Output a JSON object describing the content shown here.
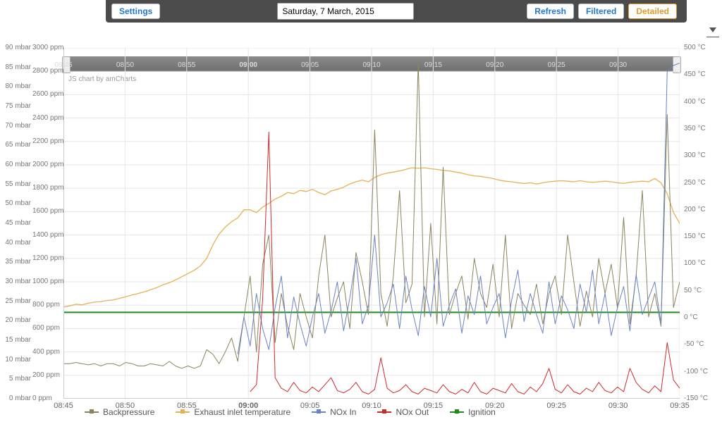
{
  "toolbar": {
    "settings": "Settings",
    "refresh": "Refresh",
    "filtered": "Filtered",
    "detailed": "Detailed",
    "date_value": "Saturday, 7 March, 2015"
  },
  "credit": "JS chart by amCharts",
  "axes": {
    "x": {
      "ticks": [
        "08:45",
        "08:50",
        "08:55",
        "09:00",
        "09:05",
        "09:10",
        "09:15",
        "09:20",
        "09:25",
        "09:30",
        "09:35"
      ],
      "bold_tick": "09:00",
      "min": 0,
      "max": 50,
      "label_color": "#666",
      "fontsize": 11
    },
    "mbar": {
      "unit": "mbar",
      "min": 0,
      "max": 90,
      "step": 5,
      "color": "#777",
      "fontsize": 10
    },
    "ppm": {
      "unit": "ppm",
      "min": 0,
      "max": 3000,
      "step": 200,
      "color": "#777",
      "fontsize": 10
    },
    "degc": {
      "unit": "°C",
      "min": -150,
      "max": 500,
      "step": 50,
      "color": "#777",
      "fontsize": 10
    }
  },
  "grid_color": "#e5e5e5",
  "background_color": "#ffffff",
  "scrollbar": {
    "bg": "#7a7a7a",
    "handle": "#eeeeee"
  },
  "series": {
    "backpressure": {
      "label": "Backpressure",
      "color": "#8a845d",
      "width": 1,
      "axis": "ppm",
      "y": [
        300,
        300,
        310,
        300,
        290,
        300,
        280,
        300,
        300,
        280,
        310,
        300,
        280,
        280,
        300,
        290,
        280,
        320,
        280,
        260,
        280,
        260,
        280,
        420,
        380,
        300,
        400,
        520,
        320,
        700,
        1050,
        400,
        1150,
        1400,
        480,
        900,
        620,
        420,
        900,
        700,
        520,
        1050,
        1400,
        700,
        860,
        1000,
        600,
        1250,
        1000,
        720,
        2300,
        900,
        620,
        1050,
        1780,
        820,
        980,
        2880,
        700,
        1500,
        640,
        1980,
        720,
        900,
        1050,
        680,
        1200,
        900,
        780,
        1150,
        700,
        1400,
        600,
        900,
        800,
        720,
        980,
        640,
        900,
        1050,
        720,
        1400,
        1000,
        620,
        920,
        700,
        1200,
        900,
        1150,
        780,
        1550,
        640,
        1050,
        1780,
        700,
        900,
        620,
        2430,
        780,
        1000
      ]
    },
    "exhaust": {
      "label": "Exhaust inlet temperature",
      "color": "#e7b055",
      "width": 1.3,
      "axis": "degc",
      "y": [
        20,
        22,
        25,
        24,
        27,
        29,
        30,
        32,
        33,
        36,
        39,
        42,
        45,
        48,
        52,
        56,
        61,
        65,
        70,
        76,
        82,
        88,
        96,
        110,
        135,
        155,
        168,
        178,
        185,
        200,
        200,
        195,
        205,
        212,
        220,
        225,
        232,
        230,
        236,
        234,
        238,
        232,
        228,
        235,
        238,
        242,
        248,
        252,
        255,
        252,
        260,
        265,
        268,
        270,
        272,
        275,
        278,
        277,
        278,
        276,
        275,
        273,
        272,
        270,
        268,
        265,
        263,
        262,
        260,
        258,
        255,
        253,
        252,
        250,
        249,
        250,
        248,
        250,
        252,
        253,
        254,
        253,
        252,
        254,
        252,
        251,
        252,
        253,
        252,
        250,
        249,
        251,
        252,
        253,
        252,
        258,
        250,
        230,
        195,
        175
      ]
    },
    "nox_in": {
      "label": "NOx In",
      "color": "#6a83c6",
      "width": 1,
      "axis": "ppm",
      "start": 28,
      "y": [
        380,
        700,
        450,
        900,
        600,
        420,
        780,
        1050,
        520,
        870,
        640,
        450,
        700,
        900,
        560,
        750,
        1000,
        580,
        860,
        1200,
        640,
        800,
        1400,
        700,
        820,
        980,
        600,
        1050,
        760,
        540,
        960,
        700,
        1200,
        620,
        800,
        940,
        560,
        880,
        720,
        1050,
        640,
        780,
        900,
        520,
        840,
        1100,
        660,
        900,
        720,
        560,
        1000,
        640,
        880,
        760,
        600,
        980,
        740,
        1100,
        640,
        900,
        540,
        780,
        960,
        580,
        1060,
        720,
        860,
        1000,
        640,
        2800,
        2850,
        2870
      ]
    },
    "nox_out": {
      "label": "NOx Out",
      "color": "#cf2a2a",
      "width": 1,
      "axis": "ppm",
      "start": 30,
      "y": [
        60,
        120,
        850,
        2280,
        180,
        90,
        60,
        140,
        70,
        50,
        100,
        60,
        120,
        180,
        70,
        50,
        80,
        140,
        60,
        40,
        80,
        350,
        90,
        50,
        70,
        120,
        60,
        40,
        90,
        70,
        50,
        120,
        60,
        40,
        80,
        50,
        140,
        60,
        40,
        90,
        70,
        50,
        130,
        60,
        40,
        100,
        60,
        130,
        260,
        80,
        50,
        120,
        60,
        40,
        90,
        60,
        140,
        70,
        50,
        100,
        60,
        260,
        140,
        80,
        50,
        110,
        60,
        480,
        160,
        90
      ]
    },
    "ignition": {
      "label": "Ignition",
      "color": "#1f8a1f",
      "width": 2,
      "axis": "degc",
      "const": 10
    }
  },
  "legend_order": [
    "backpressure",
    "exhaust",
    "nox_in",
    "nox_out",
    "ignition"
  ]
}
